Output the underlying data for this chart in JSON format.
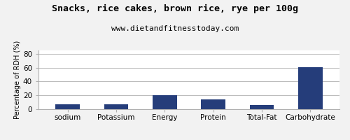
{
  "title": "Snacks, rice cakes, brown rice, rye per 100g",
  "subtitle": "www.dietandfitnesstoday.com",
  "categories": [
    "sodium",
    "Potassium",
    "Energy",
    "Protein",
    "Total-Fat",
    "Carbohydrate"
  ],
  "values": [
    7,
    7,
    20,
    14,
    6,
    61
  ],
  "bar_color": "#253d7a",
  "ylabel": "Percentage of RDH (%)",
  "ylim": [
    0,
    85
  ],
  "yticks": [
    0,
    20,
    40,
    60,
    80
  ],
  "background_color": "#f2f2f2",
  "plot_bg_color": "#ffffff",
  "title_fontsize": 9.5,
  "subtitle_fontsize": 8,
  "ylabel_fontsize": 7,
  "tick_fontsize": 7.5
}
